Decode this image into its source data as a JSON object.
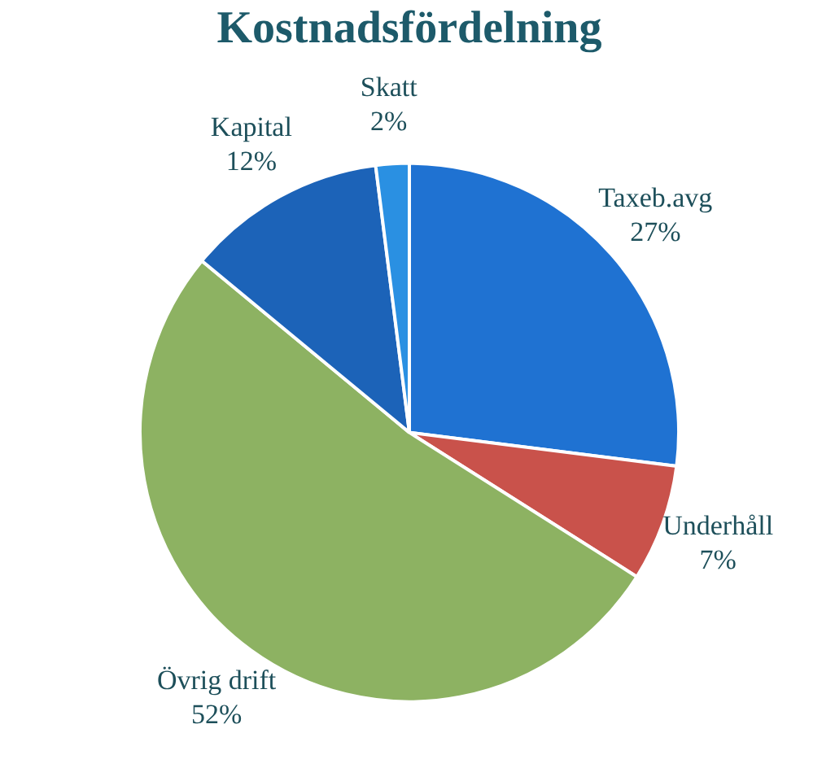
{
  "chart_data": {
    "type": "pie",
    "title": "Kostnadsfördelning",
    "categories": [
      "Taxeb.avg",
      "Underhåll",
      "Övrig drift",
      "Kapital",
      "Skatt"
    ],
    "values": [
      27,
      7,
      52,
      12,
      2
    ],
    "value_labels": [
      "27%",
      "7%",
      "52%",
      "12%",
      "2%"
    ],
    "colors": [
      "#1f72d2",
      "#c9524b",
      "#8db262",
      "#1c63b8",
      "#2a90e2"
    ],
    "legend": false
  }
}
